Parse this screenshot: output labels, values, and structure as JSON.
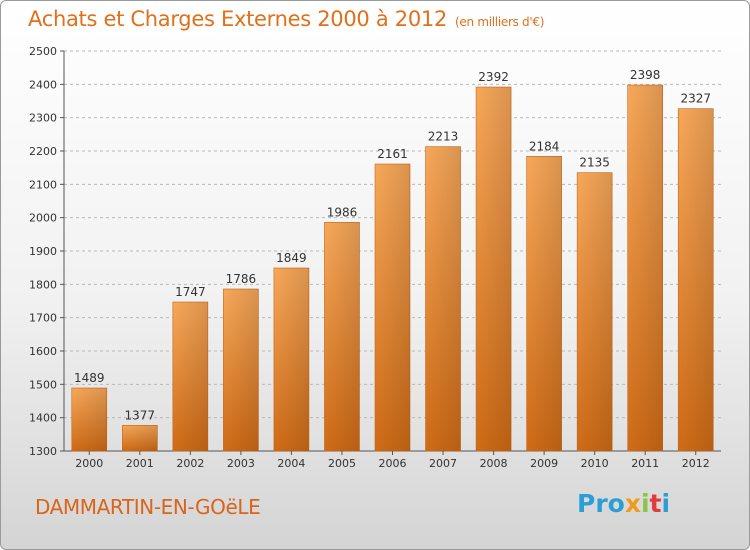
{
  "header": {
    "title": "Achats et Charges Externes 2000 à 2012",
    "units": "(en milliers d'€)"
  },
  "footer": {
    "city": "DAMMARTIN-EN-GOëLE",
    "logo": [
      "Pro",
      "x",
      "i",
      "t",
      "i"
    ]
  },
  "chart_data": {
    "type": "bar",
    "title": "Achats et Charges Externes 2000 à 2012",
    "categories": [
      "2000",
      "2001",
      "2002",
      "2003",
      "2004",
      "2005",
      "2006",
      "2007",
      "2008",
      "2009",
      "2010",
      "2011",
      "2012"
    ],
    "values": [
      1489,
      1377,
      1747,
      1786,
      1849,
      1986,
      2161,
      2213,
      2392,
      2184,
      2135,
      2398,
      2327
    ],
    "xlabel": "",
    "ylabel": "",
    "ylim": [
      1300,
      2500
    ],
    "yticks": [
      1300,
      1400,
      1500,
      1600,
      1700,
      1800,
      1900,
      2000,
      2100,
      2200,
      2300,
      2400,
      2500
    ],
    "grid": true,
    "bar_color": "#f08a2e"
  }
}
